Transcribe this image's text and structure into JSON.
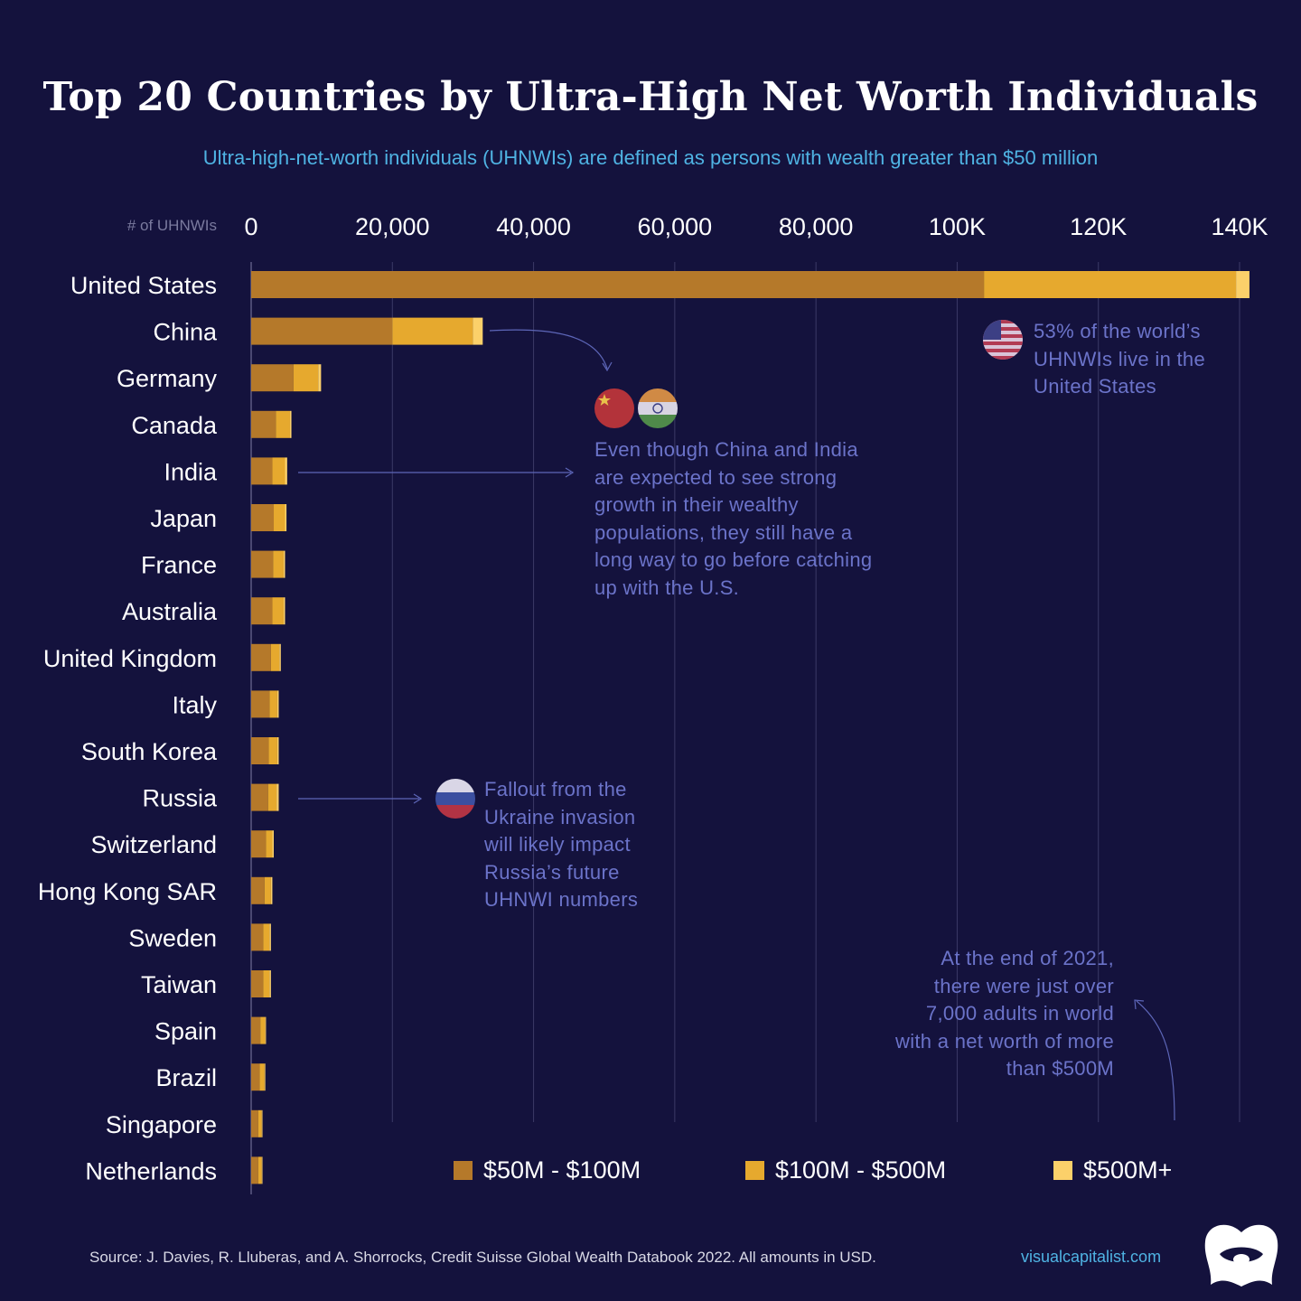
{
  "chart_data": {
    "type": "bar",
    "orientation": "horizontal",
    "stacked": true,
    "title": "Top 20 Countries by Ultra-High Net Worth Individuals",
    "subtitle": "Ultra-high-net-worth individuals (UHNWIs) are defined as persons with wealth greater than $50 million",
    "xlabel": "# of UHNWIs",
    "xlim": [
      0,
      140000
    ],
    "x_ticks": [
      0,
      20000,
      40000,
      60000,
      80000,
      100000,
      120000,
      140000
    ],
    "x_tick_labels": [
      "0",
      "20,000",
      "40,000",
      "60,000",
      "80,000",
      "100K",
      "120K",
      "140K"
    ],
    "grid": "vertical",
    "legend_position": "bottom",
    "categories": [
      "United States",
      "China",
      "Germany",
      "Canada",
      "India",
      "Japan",
      "France",
      "Australia",
      "United Kingdom",
      "Italy",
      "South Korea",
      "Russia",
      "Switzerland",
      "Hong Kong SAR",
      "Sweden",
      "Taiwan",
      "Spain",
      "Brazil",
      "Singapore",
      "Netherlands"
    ],
    "series": [
      {
        "name": "$50M - $100M",
        "color": "#b5792a",
        "values": [
          103800,
          20000,
          6000,
          3500,
          3000,
          3200,
          3100,
          3000,
          2800,
          2600,
          2500,
          2400,
          2100,
          1900,
          1700,
          1700,
          1300,
          1200,
          1000,
          1000
        ]
      },
      {
        "name": "$100M - $500M",
        "color": "#e6a92e",
        "values": [
          35700,
          11400,
          3500,
          2000,
          1800,
          1600,
          1500,
          1600,
          1200,
          1100,
          1200,
          1200,
          900,
          900,
          900,
          900,
          700,
          700,
          500,
          500
        ]
      },
      {
        "name": "$500M+",
        "color": "#fbd06a",
        "values": [
          1900,
          1400,
          400,
          200,
          300,
          200,
          200,
          200,
          200,
          200,
          200,
          300,
          200,
          200,
          200,
          200,
          100,
          100,
          100,
          100
        ]
      }
    ]
  },
  "annotations": {
    "us": "53% of the world’s UHNWIs live in the United States",
    "china_india": "Even though China and India are expected to see strong growth in their wealthy populations, they still have a long way to go before catching up with the U.S.",
    "russia": "Fallout from the Ukraine invasion will likely impact Russia’s future UHNWI numbers",
    "over_500m": "At the end of 2021, there were just over 7,000 adults in world with a net worth of more than $500M"
  },
  "footer": {
    "source": "Source: J. Davies, R. Lluberas, and A. Shorrocks, Credit Suisse Global Wealth Databook 2022. All amounts in USD.",
    "site": "visualcapitalist.com"
  },
  "colors": {
    "background": "#14123d",
    "grid": "#3b3a66",
    "label": "#ffffff",
    "annotation": "#6b73c9",
    "accent": "#4fb3e3"
  },
  "icons": [
    "us-flag-icon",
    "china-flag-icon",
    "india-flag-icon",
    "russia-flag-icon",
    "visual-capitalist-logo-icon"
  ]
}
